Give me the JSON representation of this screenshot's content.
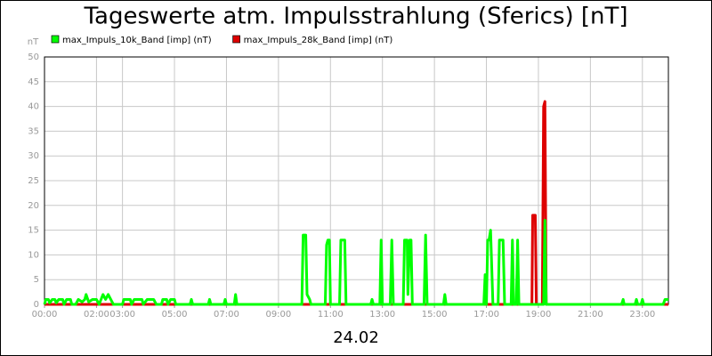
{
  "chart_data": {
    "type": "line",
    "title": "Tageswerte atm. Impulsstrahlung (Sferics) [nT]",
    "y_label": "nT",
    "x_label": "24.02",
    "xlim": [
      0,
      24
    ],
    "xticks": [
      {
        "value": 0,
        "label": "00:00"
      },
      {
        "value": 2,
        "label": "02:00"
      },
      {
        "value": 3,
        "label": "03:00"
      },
      {
        "value": 5,
        "label": "05:00"
      },
      {
        "value": 7,
        "label": "07:00"
      },
      {
        "value": 9,
        "label": "09:00"
      },
      {
        "value": 11,
        "label": "11:00"
      },
      {
        "value": 13,
        "label": "13:00"
      },
      {
        "value": 15,
        "label": "15:00"
      },
      {
        "value": 17,
        "label": "17:00"
      },
      {
        "value": 19,
        "label": "19:00"
      },
      {
        "value": 21,
        "label": "21:00"
      },
      {
        "value": 23,
        "label": "23:00"
      }
    ],
    "ylim": [
      0,
      50
    ],
    "yticks": [
      0,
      5,
      10,
      15,
      20,
      25,
      30,
      35,
      40,
      45,
      50
    ],
    "grid": true,
    "legend": "top-left",
    "series": [
      {
        "name": "max_Impuls_10k_Band [imp] (nT)",
        "color": "#00ff00",
        "x": [
          0,
          0.05,
          0.15,
          0.2,
          0.3,
          0.4,
          0.45,
          0.55,
          0.7,
          0.75,
          0.85,
          1.0,
          1.05,
          1.2,
          1.3,
          1.45,
          1.55,
          1.6,
          1.7,
          1.85,
          2.0,
          2.1,
          2.25,
          2.35,
          2.45,
          2.55,
          2.65,
          3.0,
          3.05,
          3.3,
          3.35,
          3.45,
          3.75,
          3.8,
          3.95,
          4.2,
          4.3,
          4.5,
          4.55,
          4.7,
          4.75,
          4.85,
          5.0,
          5.05,
          5.6,
          5.65,
          5.7,
          6.3,
          6.35,
          6.4,
          6.9,
          6.95,
          7.0,
          7.3,
          7.35,
          7.4,
          9.9,
          9.95,
          10.05,
          10.1,
          10.2,
          10.25,
          10.8,
          10.85,
          10.9,
          10.96,
          11.0,
          11.35,
          11.4,
          11.55,
          11.6,
          12.55,
          12.6,
          12.65,
          12.9,
          12.95,
          13.0,
          13.3,
          13.36,
          13.42,
          13.8,
          13.85,
          13.95,
          13.98,
          14.05,
          14.1,
          14.15,
          14.6,
          14.66,
          14.72,
          15.35,
          15.4,
          15.45,
          16.9,
          16.95,
          17.0,
          17.05,
          17.1,
          17.16,
          17.25,
          17.45,
          17.5,
          17.64,
          17.7,
          17.95,
          18.0,
          18.05,
          18.15,
          18.2,
          18.25,
          19.2,
          19.25,
          19.3,
          22.2,
          22.26,
          22.3,
          22.72,
          22.77,
          22.82,
          22.95,
          23.0,
          23.05,
          23.8,
          23.87,
          24
        ],
        "values": [
          0,
          1,
          1,
          0.3,
          1,
          1,
          0.3,
          1,
          1,
          0,
          1,
          1,
          0,
          0,
          1,
          0.5,
          1,
          2,
          0.5,
          1,
          1,
          0,
          2,
          1,
          2,
          1,
          0,
          0,
          1,
          1,
          0,
          1,
          1,
          0,
          1,
          1,
          0,
          0,
          1,
          1,
          0,
          1,
          1,
          0,
          0,
          1,
          0,
          0,
          1,
          0,
          0,
          1,
          0,
          0,
          2,
          0,
          0,
          14,
          14,
          2,
          1,
          0,
          0,
          12,
          13,
          13,
          0,
          0,
          13,
          13,
          0,
          0,
          1,
          0,
          0,
          13,
          0,
          0,
          13,
          0,
          0,
          13,
          13,
          2,
          13,
          13,
          0,
          0,
          14,
          0,
          0,
          2,
          0,
          0,
          6,
          0,
          13,
          13,
          15,
          0,
          0,
          13,
          13,
          0,
          0,
          13,
          0,
          0,
          13,
          0,
          0,
          17,
          0,
          0,
          1,
          0,
          0,
          1,
          0,
          0,
          1,
          0,
          0,
          1,
          1
        ]
      },
      {
        "name": "max_Impuls_28k_Band [imp] (nT)",
        "color": "#dd0000",
        "x": [
          0,
          18.75,
          18.78,
          18.88,
          18.92,
          19.15,
          19.2,
          19.25,
          19.3,
          24
        ],
        "values": [
          0,
          0,
          18,
          18,
          0,
          0,
          40,
          41,
          0,
          0
        ]
      }
    ]
  }
}
